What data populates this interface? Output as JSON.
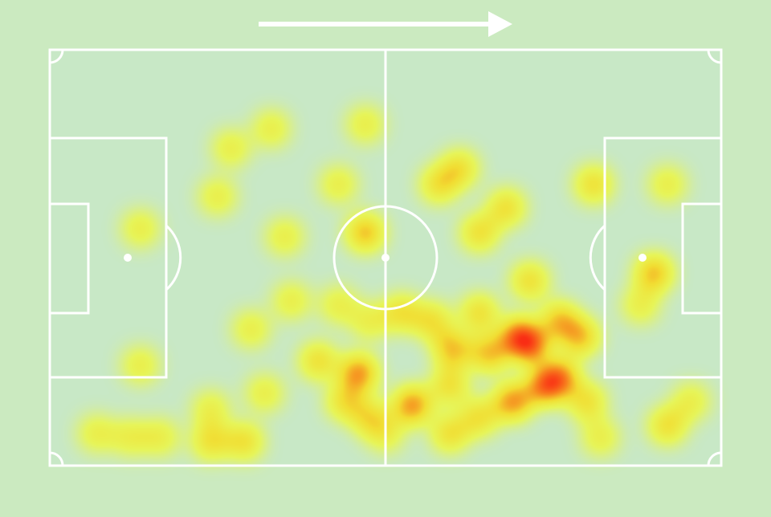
{
  "chart_data": {
    "type": "heatmap",
    "xlim": [
      0,
      100
    ],
    "ylim": [
      0,
      100
    ],
    "x": [
      47,
      71.5,
      74,
      70,
      76,
      69,
      54,
      46,
      60,
      65.5,
      90,
      81,
      92,
      61,
      58,
      68,
      64,
      71.5,
      33,
      47,
      27,
      25,
      43,
      35,
      13.5,
      36,
      30,
      13.5,
      7,
      12,
      16.5,
      24,
      29,
      24,
      32,
      40,
      44,
      47.6,
      59.6,
      64,
      76,
      79,
      80,
      82,
      92,
      95.5,
      88,
      43,
      52.4,
      57,
      64,
      59.6,
      47.6,
      50
    ],
    "y": [
      44,
      71,
      80.7,
      69,
      78.8,
      84.6,
      85.5,
      77.8,
      72,
      73,
      53.7,
      32.4,
      32.4,
      28.6,
      32.4,
      38,
      44,
      55.6,
      19,
      18,
      23.7,
      35.3,
      32.4,
      45,
      43,
      60.4,
      67.2,
      75.9,
      92.3,
      93.2,
      93.2,
      94.2,
      94.2,
      86.5,
      82.6,
      74.9,
      84.6,
      88.4,
      92.3,
      88.4,
      65.3,
      69,
      84.6,
      93.2,
      90.4,
      84.6,
      61.4,
      61.4,
      63.3,
      65.3,
      63.3,
      80.7,
      65.3,
      92.3
    ],
    "values": [
      3,
      5,
      5,
      5,
      4,
      4,
      4,
      4,
      3,
      3,
      3,
      2,
      1,
      2,
      2,
      2,
      2,
      2,
      1,
      1,
      1,
      1,
      1,
      1,
      1,
      1,
      1,
      1,
      1,
      1,
      1,
      2,
      2,
      1,
      1,
      2,
      2,
      2,
      2,
      2,
      3,
      3,
      2,
      1,
      2,
      1,
      1,
      1,
      2,
      2,
      2,
      2,
      1,
      1
    ]
  }
}
